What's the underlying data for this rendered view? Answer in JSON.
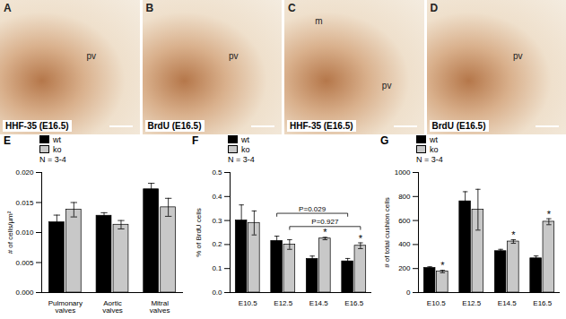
{
  "image_panels": [
    {
      "letter": "A",
      "stain": "HHF-35 (E16.5)",
      "labels": [
        "pv"
      ]
    },
    {
      "letter": "B",
      "stain": "BrdU (E16.5)",
      "labels": [
        "pv"
      ]
    },
    {
      "letter": "C",
      "stain": "HHF-35 (E16.5)",
      "labels": [
        "m",
        "pv"
      ]
    },
    {
      "letter": "D",
      "stain": "BrdU (E16.5)",
      "labels": [
        "pv"
      ]
    }
  ],
  "chart_data": [
    {
      "type": "bar",
      "title": "E",
      "y_label": "# of cells/µm²",
      "categories": [
        "Pulmonary valves",
        "Aortic valves",
        "Mitral valves"
      ],
      "series": [
        {
          "name": "wt",
          "color": "#000000",
          "values": [
            0.0117,
            0.0128,
            0.0172
          ],
          "errors": [
            0.0012,
            0.0005,
            0.001
          ]
        },
        {
          "name": "ko",
          "color": "#c8c8c8",
          "values": [
            0.0138,
            0.0113,
            0.0142
          ],
          "errors": [
            0.0012,
            0.0007,
            0.0015
          ]
        }
      ],
      "ylim": [
        0,
        0.02
      ],
      "yticks": [
        {
          "value": 0,
          "label": "0.000"
        },
        {
          "value": 0.005,
          "label": "0.005"
        },
        {
          "value": 0.01,
          "label": "0.010"
        },
        {
          "value": 0.015,
          "label": "0.015"
        },
        {
          "value": 0.02,
          "label": "0.020"
        }
      ],
      "grid": false,
      "annotations": [
        {
          "text": "N = 3-4"
        }
      ]
    },
    {
      "type": "bar",
      "title": "F",
      "y_label": "% of BrdU cells",
      "categories": [
        "E10.5",
        "E12.5",
        "E14.5",
        "E16.5"
      ],
      "series": [
        {
          "name": "wt",
          "color": "#000000",
          "values": [
            0.3,
            0.215,
            0.14,
            0.13
          ],
          "errors": [
            0.065,
            0.02,
            0.012,
            0.012
          ]
        },
        {
          "name": "ko",
          "color": "#c8c8c8",
          "values": [
            0.29,
            0.2,
            0.225,
            0.195
          ],
          "errors": [
            0.05,
            0.02,
            0.005,
            0.012
          ],
          "significance": [
            null,
            null,
            "*",
            "*"
          ]
        }
      ],
      "ylim": [
        0,
        0.5
      ],
      "yticks": [
        {
          "value": 0,
          "label": "0.0"
        },
        {
          "value": 0.1,
          "label": "0.1"
        },
        {
          "value": 0.2,
          "label": "0.2"
        },
        {
          "value": 0.3,
          "label": "0.3"
        },
        {
          "value": 0.4,
          "label": "0.4"
        },
        {
          "value": 0.5,
          "label": "0.5"
        }
      ],
      "grid": false,
      "annotations": [
        {
          "text": "N = 3-4"
        },
        {
          "text": "P=0.029",
          "series": "wt",
          "from": "E12.5",
          "to": "E16.5"
        },
        {
          "text": "P=0.927",
          "series": "ko",
          "from": "E12.5",
          "to": "E16.5"
        }
      ]
    },
    {
      "type": "bar",
      "title": "G",
      "y_label": "# of total cushion cells",
      "categories": [
        "E10.5",
        "E12.5",
        "E14.5",
        "E16.5"
      ],
      "series": [
        {
          "name": "wt",
          "color": "#000000",
          "values": [
            205,
            760,
            345,
            285
          ],
          "errors": [
            10,
            80,
            15,
            20
          ]
        },
        {
          "name": "ko",
          "color": "#c8c8c8",
          "values": [
            175,
            690,
            425,
            590
          ],
          "errors": [
            10,
            170,
            15,
            25
          ],
          "significance": [
            "*",
            null,
            "*",
            "*"
          ]
        }
      ],
      "ylim": [
        0,
        1000
      ],
      "yticks": [
        0,
        200,
        400,
        600,
        800,
        1000
      ],
      "grid": false,
      "annotations": [
        {
          "text": "N = 3-4"
        }
      ]
    }
  ]
}
